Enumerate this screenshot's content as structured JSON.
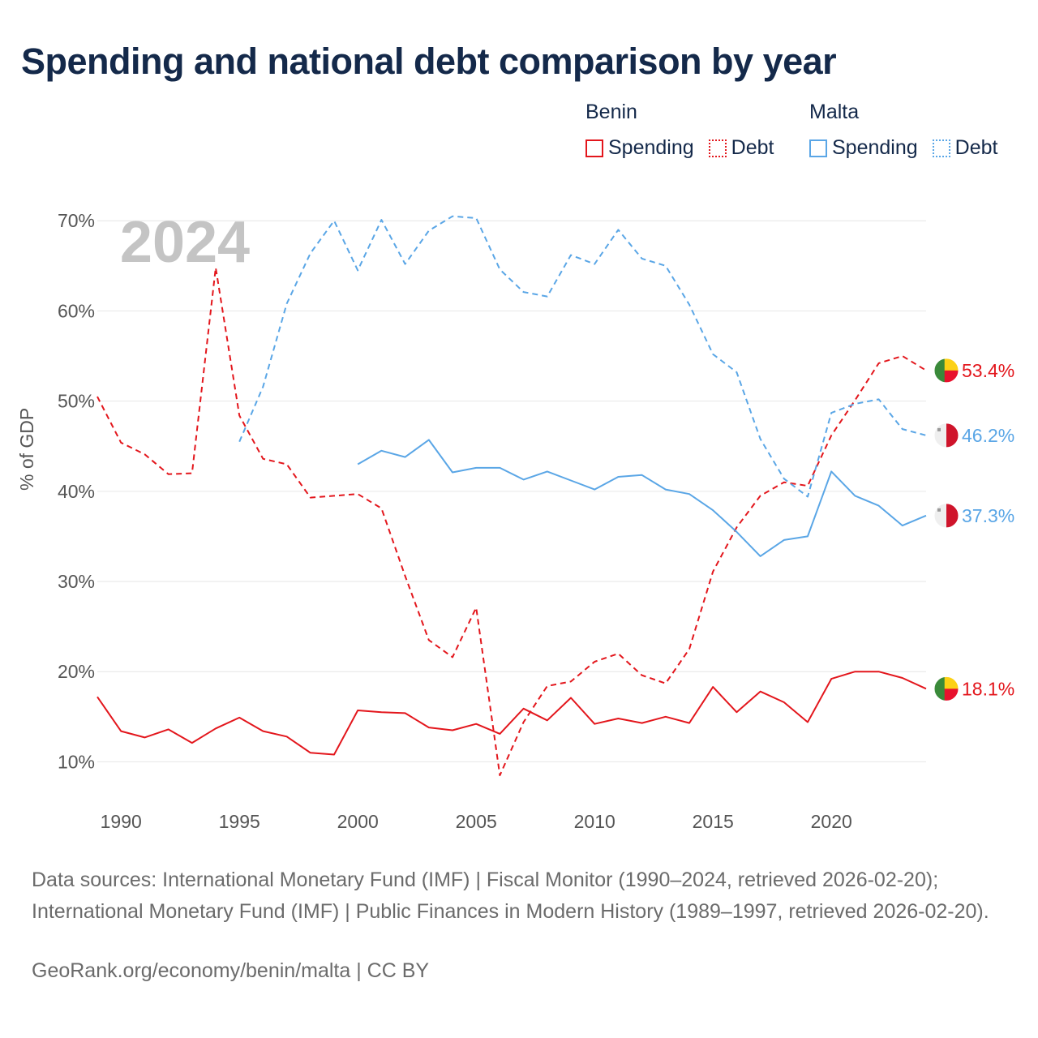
{
  "title": "Spending and national debt comparison by year",
  "year_badge": "2024",
  "legend": {
    "groups": [
      {
        "country": "Benin",
        "color": "#e3161c",
        "items": [
          {
            "label": "Spending",
            "style": "solid"
          },
          {
            "label": "Debt",
            "style": "dotted"
          }
        ]
      },
      {
        "country": "Malta",
        "color": "#5aa6e6",
        "items": [
          {
            "label": "Spending",
            "style": "solid"
          },
          {
            "label": "Debt",
            "style": "dotted"
          }
        ]
      }
    ]
  },
  "footer": {
    "sources": "Data sources: International Monetary Fund (IMF) | Fiscal Monitor (1990–2024, retrieved 2026-02-20); International Monetary Fund (IMF) | Public Finances in Modern History (1989–1997, retrieved 2026-02-20).",
    "credit": "GeoRank.org/economy/benin/malta | CC BY"
  },
  "chart_data": {
    "type": "line",
    "title": "Spending and national debt comparison by year",
    "xlabel": "",
    "ylabel": "% of GDP",
    "xlim": [
      1989,
      2024
    ],
    "ylim": [
      5,
      72
    ],
    "x_ticks": [
      1990,
      1995,
      2000,
      2005,
      2010,
      2015,
      2020
    ],
    "y_ticks": [
      10,
      20,
      30,
      40,
      50,
      60,
      70
    ],
    "y_tick_labels": [
      "10%",
      "20%",
      "30%",
      "40%",
      "50%",
      "60%",
      "70%"
    ],
    "grid": true,
    "series": [
      {
        "name": "Benin Debt",
        "country": "Benin",
        "metric": "Debt",
        "color": "#e3161c",
        "dash": "dashed",
        "flag": "benin",
        "end_label": "53.4%",
        "x": [
          1989,
          1990,
          1991,
          1992,
          1993,
          1994,
          1995,
          1996,
          1997,
          1998,
          1999,
          2000,
          2001,
          2002,
          2003,
          2004,
          2005,
          2006,
          2007,
          2008,
          2009,
          2010,
          2011,
          2012,
          2013,
          2014,
          2015,
          2016,
          2017,
          2018,
          2019,
          2020,
          2021,
          2022,
          2023,
          2024
        ],
        "values": [
          50.5,
          45.4,
          44.1,
          41.9,
          42.0,
          64.8,
          48.4,
          43.6,
          43.0,
          39.3,
          39.5,
          39.7,
          38.1,
          30.6,
          23.5,
          21.6,
          27.1,
          8.5,
          14.4,
          18.4,
          18.9,
          21.1,
          22.0,
          19.6,
          18.7,
          22.5,
          31.1,
          36.0,
          39.5,
          41.0,
          40.6,
          46.2,
          50.1,
          54.2,
          55.0,
          53.4
        ]
      },
      {
        "name": "Malta Debt",
        "country": "Malta",
        "metric": "Debt",
        "color": "#5aa6e6",
        "dash": "dashed",
        "flag": "malta",
        "end_label": "46.2%",
        "x": [
          1995,
          1996,
          1997,
          1998,
          1999,
          2000,
          2001,
          2002,
          2003,
          2004,
          2005,
          2006,
          2007,
          2008,
          2009,
          2010,
          2011,
          2012,
          2013,
          2014,
          2015,
          2016,
          2017,
          2018,
          2019,
          2020,
          2021,
          2022,
          2023,
          2024
        ],
        "values": [
          45.5,
          51.6,
          60.8,
          66.4,
          70.0,
          64.5,
          70.1,
          65.2,
          68.9,
          70.5,
          70.3,
          64.6,
          62.1,
          61.6,
          66.2,
          65.2,
          69.0,
          65.8,
          65.0,
          60.7,
          55.2,
          53.2,
          45.8,
          41.4,
          39.4,
          48.7,
          49.7,
          50.2,
          46.9,
          46.2
        ]
      },
      {
        "name": "Malta Spending",
        "country": "Malta",
        "metric": "Spending",
        "color": "#5aa6e6",
        "dash": "solid",
        "flag": "malta",
        "end_label": "37.3%",
        "x": [
          2000,
          2001,
          2002,
          2003,
          2004,
          2005,
          2006,
          2007,
          2008,
          2009,
          2010,
          2011,
          2012,
          2013,
          2014,
          2015,
          2016,
          2017,
          2018,
          2019,
          2020,
          2021,
          2022,
          2023,
          2024
        ],
        "values": [
          43.0,
          44.5,
          43.8,
          45.7,
          42.1,
          42.6,
          42.6,
          41.3,
          42.2,
          41.2,
          40.2,
          41.6,
          41.8,
          40.2,
          39.7,
          37.9,
          35.5,
          32.8,
          34.6,
          35.0,
          42.2,
          39.5,
          38.4,
          36.2,
          37.3
        ]
      },
      {
        "name": "Benin Spending",
        "country": "Benin",
        "metric": "Spending",
        "color": "#e3161c",
        "dash": "solid",
        "flag": "benin",
        "end_label": "18.1%",
        "x": [
          1989,
          1990,
          1991,
          1992,
          1993,
          1994,
          1995,
          1996,
          1997,
          1998,
          1999,
          2000,
          2001,
          2002,
          2003,
          2004,
          2005,
          2006,
          2007,
          2008,
          2009,
          2010,
          2011,
          2012,
          2013,
          2014,
          2015,
          2016,
          2017,
          2018,
          2019,
          2020,
          2021,
          2022,
          2023,
          2024
        ],
        "values": [
          17.2,
          13.4,
          12.7,
          13.6,
          12.1,
          13.7,
          14.9,
          13.4,
          12.8,
          11.0,
          10.8,
          15.7,
          15.5,
          15.4,
          13.8,
          13.5,
          14.2,
          13.1,
          15.9,
          14.6,
          17.1,
          14.2,
          14.8,
          14.3,
          15.0,
          14.3,
          18.3,
          15.5,
          17.8,
          16.6,
          14.4,
          19.2,
          20.0,
          20.0,
          19.3,
          18.1
        ]
      }
    ]
  }
}
